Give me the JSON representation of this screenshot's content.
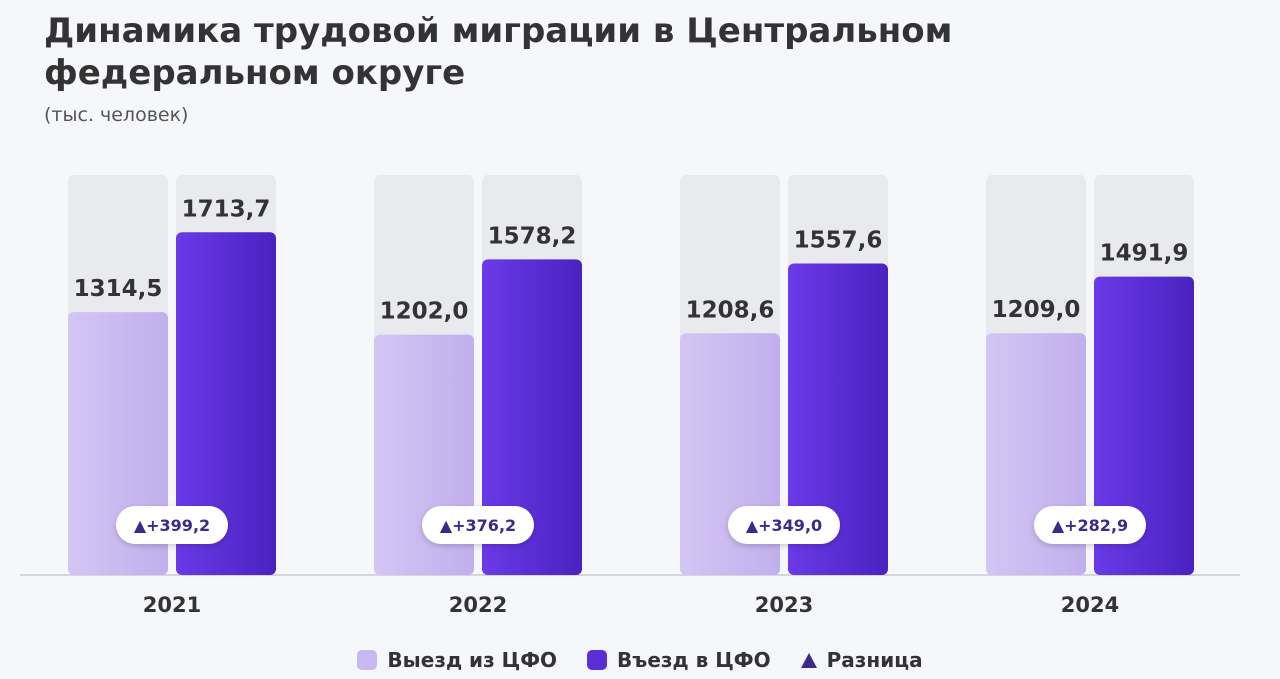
{
  "title": "Динамика трудовой миграции в Центральном федеральном округе",
  "subtitle": "(тыс. человек)",
  "colors": {
    "exit": "#c8b8ef",
    "entry": "#5b2fd6",
    "track": "#e9eaee",
    "diff": "#3b2a8c"
  },
  "chart_data": {
    "type": "bar",
    "title": "Динамика трудовой миграции в Центральном федеральном округе",
    "ylabel": "тыс. человек",
    "categories": [
      "2021",
      "2022",
      "2023",
      "2024"
    ],
    "series": [
      {
        "name": "Выезд из ЦФО",
        "values": [
          1314.5,
          1202.0,
          1208.6,
          1209.0
        ],
        "labels": [
          "1314,5",
          "1202,0",
          "1208,6",
          "1209,0"
        ]
      },
      {
        "name": "Въезд в ЦФО",
        "values": [
          1713.7,
          1578.2,
          1557.6,
          1491.9
        ],
        "labels": [
          "1713,7",
          "1578,2",
          "1557,6",
          "1491,9"
        ]
      }
    ],
    "difference": {
      "name": "Разница",
      "values": [
        399.2,
        376.2,
        349.0,
        282.9
      ],
      "labels": [
        "▲+399,2",
        "▲+376,2",
        "▲+349,0",
        "▲+282,9"
      ]
    },
    "ylim": [
      0,
      2000
    ],
    "grid": false,
    "legend": "bottom"
  },
  "legend": {
    "exit_label": "Выезд из ЦФО",
    "entry_label": "Въезд в ЦФО",
    "diff_label": "Разница"
  }
}
